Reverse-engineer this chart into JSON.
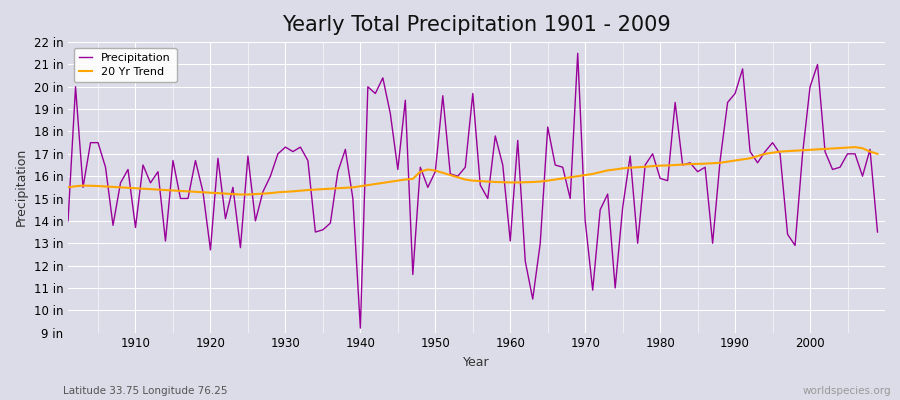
{
  "title": "Yearly Total Precipitation 1901 - 2009",
  "xlabel": "Year",
  "ylabel": "Precipitation",
  "subtitle": "Latitude 33.75 Longitude 76.25",
  "watermark": "worldspecies.org",
  "years": [
    1901,
    1902,
    1903,
    1904,
    1905,
    1906,
    1907,
    1908,
    1909,
    1910,
    1911,
    1912,
    1913,
    1914,
    1915,
    1916,
    1917,
    1918,
    1919,
    1920,
    1921,
    1922,
    1923,
    1924,
    1925,
    1926,
    1927,
    1928,
    1929,
    1930,
    1931,
    1932,
    1933,
    1934,
    1935,
    1936,
    1937,
    1938,
    1939,
    1940,
    1941,
    1942,
    1943,
    1944,
    1945,
    1946,
    1947,
    1948,
    1949,
    1950,
    1951,
    1952,
    1953,
    1954,
    1955,
    1956,
    1957,
    1958,
    1959,
    1960,
    1961,
    1962,
    1963,
    1964,
    1965,
    1966,
    1967,
    1968,
    1969,
    1970,
    1971,
    1972,
    1973,
    1974,
    1975,
    1976,
    1977,
    1978,
    1979,
    1980,
    1981,
    1982,
    1983,
    1984,
    1985,
    1986,
    1987,
    1988,
    1989,
    1990,
    1991,
    1992,
    1993,
    1994,
    1995,
    1996,
    1997,
    1998,
    1999,
    2000,
    2001,
    2002,
    2003,
    2004,
    2005,
    2006,
    2007,
    2008,
    2009
  ],
  "precip": [
    14.0,
    20.0,
    15.5,
    17.5,
    17.5,
    16.4,
    13.8,
    15.7,
    16.3,
    13.7,
    16.5,
    15.7,
    16.2,
    13.1,
    16.7,
    15.0,
    15.0,
    16.7,
    15.3,
    12.7,
    16.8,
    14.1,
    15.5,
    12.8,
    16.9,
    14.0,
    15.3,
    16.0,
    17.0,
    17.3,
    17.1,
    17.3,
    16.7,
    13.5,
    13.6,
    13.9,
    16.2,
    17.2,
    15.0,
    9.2,
    20.0,
    19.7,
    20.4,
    18.8,
    16.3,
    19.4,
    11.6,
    16.4,
    15.5,
    16.2,
    19.6,
    16.1,
    16.0,
    16.4,
    19.7,
    15.6,
    15.0,
    17.8,
    16.5,
    13.1,
    17.6,
    12.2,
    10.5,
    13.0,
    18.2,
    16.5,
    16.4,
    15.0,
    21.5,
    14.0,
    10.9,
    14.5,
    15.2,
    11.0,
    14.6,
    16.9,
    13.0,
    16.5,
    17.0,
    15.9,
    15.8,
    19.3,
    16.5,
    16.6,
    16.2,
    16.4,
    13.0,
    16.7,
    19.3,
    19.7,
    20.8,
    17.1,
    16.6,
    17.1,
    17.5,
    17.0,
    13.4,
    12.9,
    17.0,
    20.0,
    21.0,
    17.1,
    16.3,
    16.4,
    17.0,
    17.0,
    16.0,
    17.2,
    13.5
  ],
  "trend": [
    15.5,
    15.55,
    15.58,
    15.57,
    15.56,
    15.54,
    15.52,
    15.5,
    15.48,
    15.46,
    15.44,
    15.42,
    15.4,
    15.38,
    15.36,
    15.34,
    15.32,
    15.3,
    15.28,
    15.26,
    15.24,
    15.22,
    15.2,
    15.18,
    15.18,
    15.2,
    15.22,
    15.24,
    15.28,
    15.3,
    15.32,
    15.35,
    15.38,
    15.4,
    15.42,
    15.44,
    15.46,
    15.48,
    15.5,
    15.55,
    15.6,
    15.65,
    15.7,
    15.75,
    15.8,
    15.85,
    15.88,
    16.2,
    16.3,
    16.25,
    16.15,
    16.05,
    15.95,
    15.85,
    15.8,
    15.78,
    15.76,
    15.74,
    15.73,
    15.72,
    15.72,
    15.73,
    15.74,
    15.76,
    15.8,
    15.85,
    15.9,
    15.95,
    16.0,
    16.05,
    16.1,
    16.18,
    16.26,
    16.3,
    16.35,
    16.38,
    16.4,
    16.42,
    16.45,
    16.47,
    16.48,
    16.5,
    16.52,
    16.54,
    16.55,
    16.56,
    16.58,
    16.6,
    16.65,
    16.7,
    16.75,
    16.8,
    16.9,
    17.0,
    17.05,
    17.1,
    17.12,
    17.14,
    17.16,
    17.18,
    17.2,
    17.22,
    17.24,
    17.26,
    17.28,
    17.3,
    17.25,
    17.1,
    17.0
  ],
  "precip_color": "#990099",
  "trend_color": "#FFA500",
  "bg_color": "#dcdce8",
  "plot_bg_color": "#dcdce8",
  "grid_color": "#ffffff",
  "ylim": [
    9,
    22
  ],
  "yticks": [
    9,
    10,
    11,
    12,
    13,
    14,
    15,
    16,
    17,
    18,
    19,
    20,
    21,
    22
  ],
  "xticks": [
    1910,
    1920,
    1930,
    1940,
    1950,
    1960,
    1970,
    1980,
    1990,
    2000
  ],
  "title_fontsize": 15,
  "label_fontsize": 9,
  "tick_fontsize": 8.5
}
